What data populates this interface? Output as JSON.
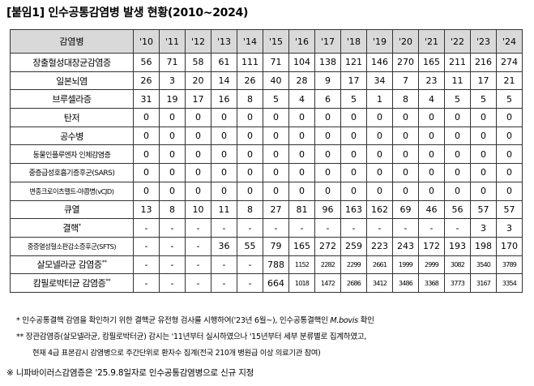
{
  "title": "[붙임1] 인수공통감염병 발생 현황(2010~2024)",
  "table": {
    "header_label": "감염병",
    "years": [
      "'10",
      "'11",
      "'12",
      "'13",
      "'14",
      "'15",
      "'16",
      "'17",
      "'18",
      "'19",
      "'20",
      "'21",
      "'22",
      "'23",
      "'24"
    ],
    "rows": [
      {
        "name": "장출혈성대장균감염증",
        "values": [
          "56",
          "71",
          "58",
          "61",
          "111",
          "71",
          "104",
          "138",
          "121",
          "146",
          "270",
          "165",
          "211",
          "216",
          "274"
        ]
      },
      {
        "name": "일본뇌염",
        "values": [
          "26",
          "3",
          "20",
          "14",
          "26",
          "40",
          "28",
          "9",
          "17",
          "34",
          "7",
          "23",
          "11",
          "17",
          "21"
        ]
      },
      {
        "name": "브루셀라증",
        "values": [
          "31",
          "19",
          "17",
          "16",
          "8",
          "5",
          "4",
          "6",
          "5",
          "1",
          "8",
          "4",
          "5",
          "5",
          "5"
        ]
      },
      {
        "name": "탄저",
        "values": [
          "0",
          "0",
          "0",
          "0",
          "0",
          "0",
          "0",
          "0",
          "0",
          "0",
          "0",
          "0",
          "0",
          "0",
          "0"
        ]
      },
      {
        "name": "공수병",
        "values": [
          "0",
          "0",
          "0",
          "0",
          "0",
          "0",
          "0",
          "0",
          "0",
          "0",
          "0",
          "0",
          "0",
          "0",
          "0"
        ]
      },
      {
        "name": "동물인플루엔자 인체감염증",
        "values": [
          "0",
          "0",
          "0",
          "0",
          "0",
          "0",
          "0",
          "0",
          "0",
          "0",
          "0",
          "0",
          "0",
          "0",
          "0"
        ]
      },
      {
        "name": "중증급성호흡기증후군(SARS)",
        "values": [
          "0",
          "0",
          "0",
          "0",
          "0",
          "0",
          "0",
          "0",
          "0",
          "0",
          "0",
          "0",
          "0",
          "0",
          "0"
        ]
      },
      {
        "name": "변종크로이츠펠트-야콥병(vCJD)",
        "values": [
          "0",
          "0",
          "0",
          "0",
          "0",
          "0",
          "0",
          "0",
          "0",
          "0",
          "0",
          "0",
          "0",
          "0",
          "0"
        ]
      },
      {
        "name": "큐열",
        "values": [
          "13",
          "8",
          "10",
          "11",
          "8",
          "27",
          "81",
          "96",
          "163",
          "162",
          "69",
          "46",
          "56",
          "57",
          "57"
        ]
      },
      {
        "name": "결핵",
        "mark": "*",
        "values": [
          "-",
          "-",
          "-",
          "-",
          "-",
          "-",
          "-",
          "-",
          "-",
          "-",
          "-",
          "-",
          "-",
          "3",
          "3"
        ]
      },
      {
        "name": "중증열성혈소판감소증후군(SFTS)",
        "values": [
          "-",
          "-",
          "-",
          "36",
          "55",
          "79",
          "165",
          "272",
          "259",
          "223",
          "243",
          "172",
          "193",
          "198",
          "170"
        ]
      },
      {
        "name": "살모넬라균 감염증",
        "mark": "**",
        "values": [
          "-",
          "-",
          "-",
          "-",
          "-",
          "788",
          "1152",
          "2282",
          "2299",
          "2661",
          "1999",
          "2999",
          "3082",
          "3540",
          "3789"
        ]
      },
      {
        "name": "캄필로박터균 감염증",
        "mark": "**",
        "values": [
          "-",
          "-",
          "-",
          "-",
          "-",
          "664",
          "1018",
          "1472",
          "2686",
          "3412",
          "3486",
          "3368",
          "3773",
          "3167",
          "3354"
        ]
      }
    ]
  },
  "notes": [
    {
      "mark": "*",
      "text": "인수공통결핵 감염을 확인하기 위한 결핵균 유전형 검사를 시행하여('23년 6월~), 인수공통결핵인 ",
      "italic": "M.bovis",
      "tail": " 확인"
    },
    {
      "mark": "**",
      "text": "장관감염증(살모넬라균, 캄필로박터균) 감시는 '11년부터 실시하였으나 '15년부터 세부 분류별로 집계하였고,"
    },
    {
      "mark": "",
      "text": "현재 4급 표본감시 감염병으로 주간단위로 환자수 집계(전국 210개 병원급 이상 의료기관 참여)"
    }
  ],
  "footer": "※ 니파바이러스감염증은 '25.9.8일자로 인수공통감염병으로 신규 지정"
}
